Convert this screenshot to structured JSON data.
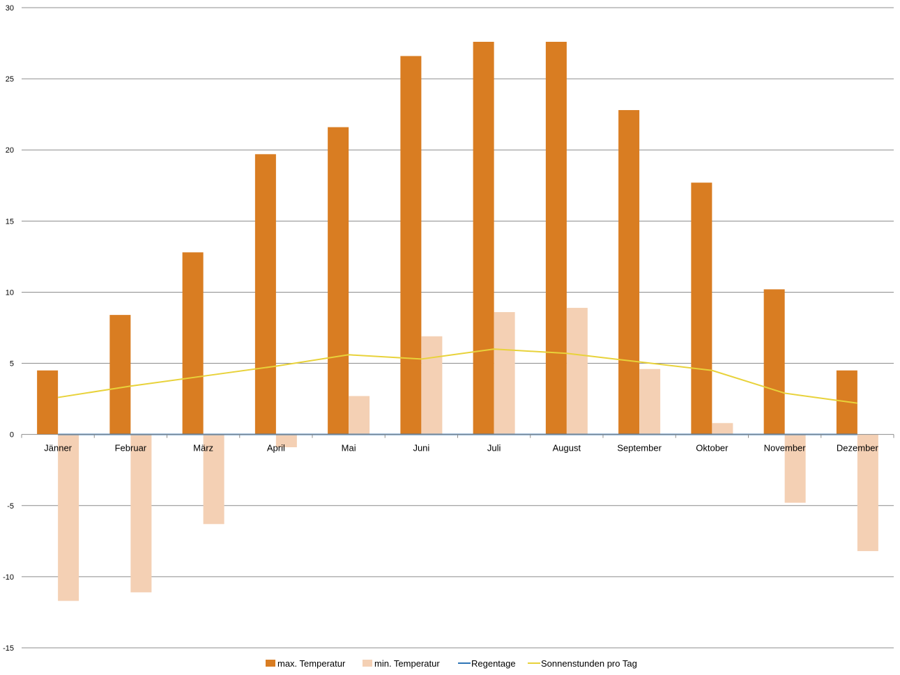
{
  "chart_data": {
    "type": "bar",
    "categories": [
      "Jänner",
      "Februar",
      "März",
      "April",
      "Mai",
      "Juni",
      "Juli",
      "August",
      "September",
      "Oktober",
      "November",
      "Dezember"
    ],
    "series": [
      {
        "name": "max. Temperatur",
        "kind": "bar",
        "color": "#d97d22",
        "values": [
          4.5,
          8.4,
          12.8,
          19.7,
          21.6,
          26.6,
          27.6,
          27.6,
          22.8,
          17.7,
          10.2,
          4.5
        ]
      },
      {
        "name": "min. Temperatur",
        "kind": "bar",
        "color": "#f4d0b4",
        "values": [
          -11.7,
          -11.1,
          -6.3,
          -0.9,
          2.7,
          6.9,
          8.6,
          8.9,
          4.6,
          0.8,
          -4.8,
          -8.2
        ]
      },
      {
        "name": "Regentage",
        "kind": "line",
        "color": "#2e75b6",
        "values": [
          0,
          0,
          0,
          0,
          0,
          0,
          0,
          0,
          0,
          0,
          0,
          0
        ]
      },
      {
        "name": "Sonnenstunden pro Tag",
        "kind": "line",
        "color": "#e8d23a",
        "values": [
          2.6,
          3.4,
          4.1,
          4.8,
          5.6,
          5.3,
          6.0,
          5.7,
          5.1,
          4.5,
          2.9,
          2.2
        ]
      }
    ],
    "ylim": [
      -15,
      30
    ],
    "yticks": [
      "-15",
      "-10",
      "-5",
      "0",
      "5",
      "10",
      "15",
      "20",
      "25",
      "30"
    ],
    "grid": true,
    "legend_position": "bottom"
  }
}
